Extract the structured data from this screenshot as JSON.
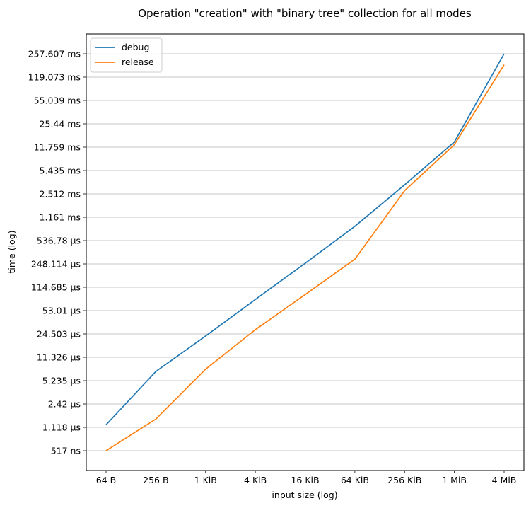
{
  "chart_data": {
    "type": "line",
    "title": "Operation \"creation\" with \"binary tree\" collection for all modes",
    "xlabel": "input size (log)",
    "ylabel": "time (log)",
    "x_scale": "log",
    "y_scale": "log",
    "categories": [
      "64 B",
      "256 B",
      "1 KiB",
      "4 KiB",
      "16 KiB",
      "64 KiB",
      "256 KiB",
      "1 MiB",
      "4 MiB"
    ],
    "y_ticks": [
      {
        "label": "517 ns",
        "value_ns": 517
      },
      {
        "label": "1.118 µs",
        "value_ns": 1118
      },
      {
        "label": "2.42 µs",
        "value_ns": 2420
      },
      {
        "label": "5.235 µs",
        "value_ns": 5235
      },
      {
        "label": "11.326 µs",
        "value_ns": 11326
      },
      {
        "label": "24.503 µs",
        "value_ns": 24503
      },
      {
        "label": "53.01 µs",
        "value_ns": 53010
      },
      {
        "label": "114.685 µs",
        "value_ns": 114685
      },
      {
        "label": "248.114 µs",
        "value_ns": 248114
      },
      {
        "label": "536.78 µs",
        "value_ns": 536780
      },
      {
        "label": "1.161 ms",
        "value_ns": 1161000
      },
      {
        "label": "2.512 ms",
        "value_ns": 2512000
      },
      {
        "label": "5.435 ms",
        "value_ns": 5435000
      },
      {
        "label": "11.759 ms",
        "value_ns": 11759000
      },
      {
        "label": "25.44 ms",
        "value_ns": 25440000
      },
      {
        "label": "55.039 ms",
        "value_ns": 55039000
      },
      {
        "label": "119.073 ms",
        "value_ns": 119073000
      },
      {
        "label": "257.607 ms",
        "value_ns": 257607000
      }
    ],
    "grid": "horizontal",
    "legend_position": "top-left",
    "series": [
      {
        "name": "debug",
        "color": "#1f77b4",
        "values_ns": [
          1218,
          7080,
          22900,
          76500,
          253000,
          860000,
          3390000,
          13950000,
          257607000
        ]
      },
      {
        "name": "release",
        "color": "#ff7f0e",
        "values_ns": [
          517,
          1470,
          7650,
          28200,
          90000,
          290000,
          2800000,
          12750000,
          179000000
        ]
      }
    ]
  }
}
